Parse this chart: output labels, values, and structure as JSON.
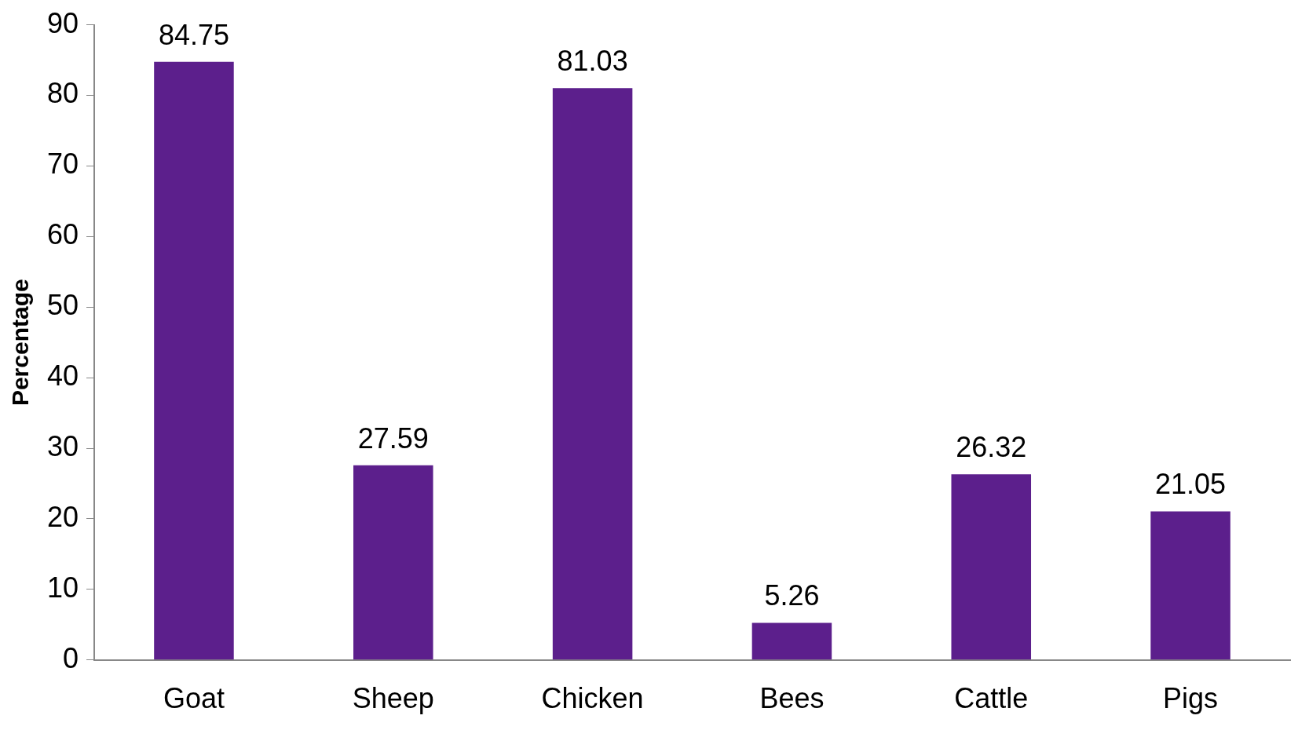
{
  "chart_data": {
    "type": "bar",
    "ylabel": "Percentage",
    "categories": [
      "Goat",
      "Sheep",
      "Chicken",
      "Bees",
      "Cattle",
      "Pigs"
    ],
    "values": [
      84.75,
      27.59,
      81.03,
      5.26,
      26.32,
      21.05
    ],
    "color": "#5c1f8c",
    "ylim": [
      0,
      90
    ],
    "yticks": [
      0,
      10,
      20,
      30,
      40,
      50,
      60,
      70,
      80,
      90
    ],
    "grid": false,
    "legend": false,
    "data_labels": true
  }
}
